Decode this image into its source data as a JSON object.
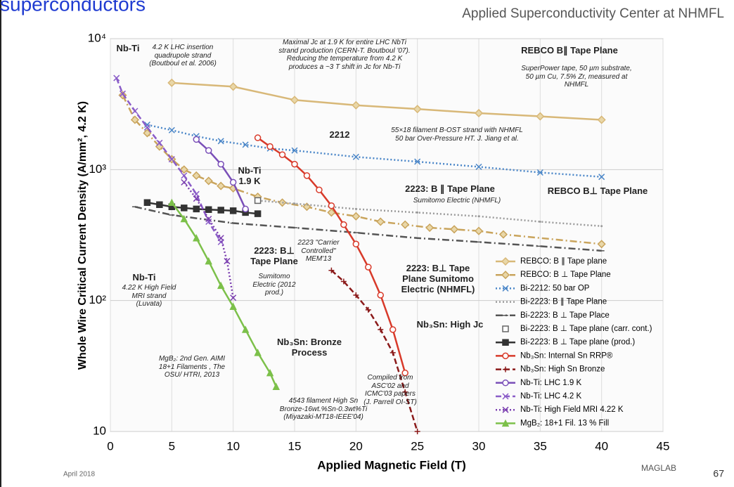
{
  "header": {
    "title": "superconductors",
    "subtitle": "Applied Superconductivity Center at NHMFL"
  },
  "footer": {
    "date": "April 2018",
    "logo": "MAGLAB",
    "page": "67"
  },
  "chart_data": {
    "type": "line",
    "log_y": true,
    "grid": true,
    "x_label": "Applied Magnetic Field (T)",
    "y_label": "Whole Wire Critical Current Density (A/mm², 4.2 K)",
    "xlim": [
      0,
      45
    ],
    "xticks": [
      0,
      5,
      10,
      15,
      20,
      25,
      30,
      35,
      40,
      45
    ],
    "ylim": [
      10,
      10000
    ],
    "yticks": [
      10,
      {
        "value": 100,
        "label": "10²"
      },
      {
        "value": 1000,
        "label": "10³"
      },
      {
        "value": 10000,
        "label": "10⁴"
      }
    ],
    "legend": "lower-right",
    "series": [
      {
        "name": "REBCO: B ∥ Tape plane",
        "color": "#d8b878",
        "marker": "diamond",
        "line_style": "solid",
        "x": [
          5,
          10,
          15,
          20,
          25,
          30,
          35,
          40
        ],
        "values": [
          4600,
          4300,
          3400,
          3100,
          2900,
          2700,
          2550,
          2400
        ]
      },
      {
        "name": "REBCO: B ⊥ Tape Plane",
        "color": "#c9a45c",
        "marker": "diamond",
        "line_style": "dashdot",
        "x": [
          1,
          2,
          3,
          4,
          5,
          6,
          7,
          8,
          9,
          10,
          12,
          14,
          16,
          18,
          20,
          22,
          24,
          26,
          28,
          30,
          32,
          40
        ],
        "values": [
          3700,
          2400,
          1900,
          1500,
          1200,
          1000,
          900,
          820,
          750,
          720,
          620,
          560,
          520,
          470,
          440,
          400,
          380,
          360,
          350,
          340,
          320,
          270
        ]
      },
      {
        "name": "Bi-2212: 50 bar OP",
        "color": "#4a86c8",
        "marker": "x",
        "line_style": "dotted",
        "x": [
          3,
          5,
          7,
          9,
          11,
          13,
          15,
          20,
          25,
          30,
          35,
          40
        ],
        "values": [
          2200,
          2000,
          1800,
          1650,
          1550,
          1450,
          1400,
          1250,
          1150,
          1050,
          950,
          880
        ]
      },
      {
        "name": "Bi-2223: B ∥ Tape Plane",
        "color": "#9a9a9a",
        "marker": "none",
        "line_style": "dotted",
        "x": [
          12,
          15,
          20,
          25,
          30,
          35,
          40
        ],
        "values": [
          580,
          550,
          500,
          470,
          440,
          400,
          370
        ]
      },
      {
        "name": "Bi-2223: B ⊥ Tape Place",
        "color": "#555555",
        "marker": "dash",
        "line_style": "dashdot",
        "x": [
          2,
          5,
          10,
          15,
          20,
          25,
          30,
          35,
          40
        ],
        "values": [
          520,
          450,
          390,
          360,
          330,
          300,
          280,
          260,
          240
        ]
      },
      {
        "name": "Bi-2223: B ⊥ Tape plane (carr. cont.)",
        "color": "#666666",
        "marker": "square-open",
        "line_style": "none",
        "x": [
          12
        ],
        "values": [
          580
        ]
      },
      {
        "name": "Bi-2223: B ⊥ Tape plane (prod.)",
        "color": "#333333",
        "marker": "square",
        "line_style": "solid",
        "x": [
          3,
          4,
          5,
          6,
          7,
          8,
          9,
          10,
          11,
          12
        ],
        "values": [
          560,
          540,
          520,
          510,
          500,
          495,
          490,
          485,
          470,
          460
        ]
      },
      {
        "name": "Nb₃Sn: Internal Sn RRP®",
        "color": "#d83a2a",
        "marker": "circle",
        "line_style": "solid",
        "x": [
          12,
          13,
          14,
          15,
          16,
          17,
          18,
          19,
          20,
          21,
          22,
          23,
          24
        ],
        "values": [
          1750,
          1500,
          1300,
          1100,
          900,
          700,
          530,
          380,
          270,
          180,
          110,
          60,
          28
        ]
      },
      {
        "name": "Nb₃Sn: High Sn Bronze",
        "color": "#8b1a1a",
        "marker": "plus",
        "line_style": "dashed",
        "x": [
          18,
          19,
          20,
          21,
          22,
          23,
          24,
          25
        ],
        "values": [
          170,
          140,
          110,
          85,
          60,
          40,
          20,
          10
        ]
      },
      {
        "name": "Nb-Ti: LHC 1.9 K",
        "color": "#7a4fb8",
        "marker": "circle",
        "line_style": "solid",
        "x": [
          7,
          8,
          9,
          10,
          11
        ],
        "values": [
          1700,
          1400,
          1100,
          800,
          500
        ]
      },
      {
        "name": "Nb-Ti: LHC 4.2 K",
        "color": "#8a5cc8",
        "marker": "x",
        "line_style": "dashed",
        "x": [
          0.5,
          1,
          2,
          3,
          4,
          5,
          6,
          7,
          8,
          9
        ],
        "values": [
          5000,
          3800,
          2800,
          2100,
          1600,
          1200,
          900,
          650,
          400,
          280
        ]
      },
      {
        "name": "Nb-Ti: High Field MRI 4.22 K",
        "color": "#7b3fb0",
        "marker": "x",
        "line_style": "dotted",
        "x": [
          6,
          7,
          8,
          9,
          9.5,
          10
        ],
        "values": [
          800,
          600,
          420,
          300,
          200,
          105
        ]
      },
      {
        "name": "MgB₂: 18+1 Fil. 13 % Fill",
        "color": "#7cc04a",
        "marker": "triangle",
        "line_style": "solid",
        "x": [
          5,
          6,
          7,
          8,
          9,
          10,
          11,
          12,
          13,
          13.5
        ],
        "values": [
          560,
          420,
          300,
          200,
          130,
          90,
          60,
          40,
          28,
          22
        ]
      }
    ],
    "annotations": [
      "Nb-Ti",
      "4.2 K LHC insertion quadrupole strand (Boutboul et al. 2006)",
      "Maximal Jc at 1.9 K for entire LHC NbTi strand production (CERN-T. Boutboul '07). Reducing the temperature from 4.2 K produces a ~3 T shift in Jc for Nb-Ti",
      "REBCO B∥ Tape Plane",
      "SuperPower tape, 50 µm substrate, 50 µm Cu, 7.5% Zr, measured at NHMFL",
      "2212",
      "55×18 filament B-OST strand with NHMFL 50 bar Over-Pressure HT. J. Jiang et al.",
      "Nb-Ti 1.9 K",
      "2223: B ∥ Tape Plane",
      "Sumitomo Electric (NHMFL)",
      "REBCO B⊥ Tape Plane",
      "2223: B⊥ Tape Plane",
      "Sumitomo Electric (2012 prod.)",
      "2223 \"Carrier Controlled\" MEM'13",
      "2223: B⊥ Tape Plane Sumitomo Electric (NHMFL)",
      "Nb-Ti",
      "4.22 K High Field MRI strand (Luvata)",
      "Nb₃Sn: High Jc",
      "Nb₃Sn: Bronze Process",
      "MgB₂: 2nd Gen. AIMI 18+1 Filaments , The OSU/ HTRI, 2013",
      "4543 filament High Sn Bronze-16wt.%Sn-0.3wt%Ti (Miyazaki-MT18-IEEE'04)",
      "Compiled from ASC'02 and ICMC'03 papers (J. Parrell OI-ST)"
    ]
  }
}
